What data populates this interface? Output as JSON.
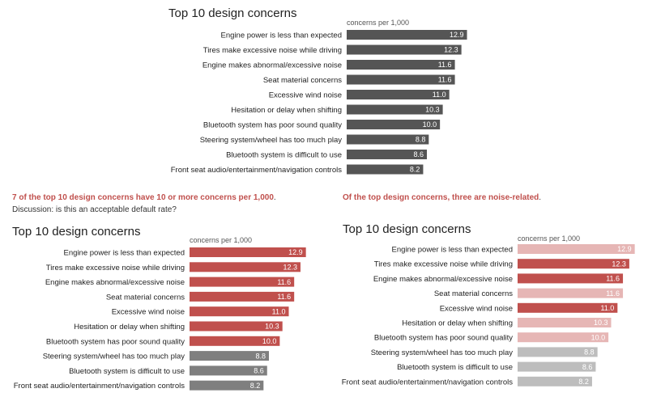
{
  "texts": {
    "takeaway_left_bold": "7 of the top 10 design concerns have 10 or more concerns per 1,000",
    "takeaway_left_end": ".",
    "takeaway_left_line2": "Discussion: is this an acceptable default rate?",
    "takeaway_right_bold": "Of the top design concerns, three are noise-related",
    "takeaway_right_end": "."
  },
  "colors": {
    "dark_gray": "#555555",
    "mid_gray": "#7f7f7f",
    "light_gray": "#bdbdbd",
    "red": "#c0504d",
    "light_red": "#e6b6b5"
  },
  "chart_data": [
    {
      "type": "bar",
      "orientation": "horizontal",
      "title": "Top 10 design concerns",
      "unit_label": "concerns per 1,000",
      "categories": [
        "Engine power is less than expected",
        "Tires make excessive noise while driving",
        "Engine makes abnormal/excessive noise",
        "Seat material concerns",
        "Excessive wind noise",
        "Hesitation or delay when shifting",
        "Bluetooth system has poor sound quality",
        "Steering system/wheel has too much play",
        "Bluetooth system is difficult to use",
        "Front seat audio/entertainment/navigation controls"
      ],
      "values": [
        12.9,
        12.3,
        11.6,
        11.6,
        11.0,
        10.3,
        10.0,
        8.8,
        8.6,
        8.2
      ],
      "labels": [
        "12.9",
        "12.3",
        "11.6",
        "11.6",
        "11.0",
        "10.3",
        "10.0",
        "8.8",
        "8.6",
        "8.2"
      ],
      "bar_colors": [
        "dark_gray",
        "dark_gray",
        "dark_gray",
        "dark_gray",
        "dark_gray",
        "dark_gray",
        "dark_gray",
        "dark_gray",
        "dark_gray",
        "dark_gray"
      ],
      "xlim": [
        0,
        13.2
      ]
    },
    {
      "type": "bar",
      "orientation": "horizontal",
      "title": "Top 10 design concerns",
      "unit_label": "concerns per 1,000",
      "categories": [
        "Engine power is less than expected",
        "Tires make excessive noise while driving",
        "Engine makes abnormal/excessive noise",
        "Seat material concerns",
        "Excessive wind noise",
        "Hesitation or delay when shifting",
        "Bluetooth system has poor sound quality",
        "Steering system/wheel has too much play",
        "Bluetooth system is difficult to use",
        "Front seat audio/entertainment/navigation controls"
      ],
      "values": [
        12.9,
        12.3,
        11.6,
        11.6,
        11.0,
        10.3,
        10.0,
        8.8,
        8.6,
        8.2
      ],
      "labels": [
        "12.9",
        "12.3",
        "11.6",
        "11.6",
        "11.0",
        "10.3",
        "10.0",
        "8.8",
        "8.6",
        "8.2"
      ],
      "bar_colors": [
        "red",
        "red",
        "red",
        "red",
        "red",
        "red",
        "red",
        "mid_gray",
        "mid_gray",
        "mid_gray"
      ],
      "xlim": [
        0,
        13.2
      ]
    },
    {
      "type": "bar",
      "orientation": "horizontal",
      "title": "Top 10 design concerns",
      "unit_label": "concerns per 1,000",
      "categories": [
        "Engine power is less than expected",
        "Tires make excessive noise while driving",
        "Engine makes abnormal/excessive noise",
        "Seat material concerns",
        "Excessive wind noise",
        "Hesitation or delay when shifting",
        "Bluetooth system has poor sound quality",
        "Steering system/wheel has too much play",
        "Bluetooth system is difficult to use",
        "Front seat audio/entertainment/navigation controls"
      ],
      "values": [
        12.9,
        12.3,
        11.6,
        11.6,
        11.0,
        10.3,
        10.0,
        8.8,
        8.6,
        8.2
      ],
      "labels": [
        "12.9",
        "12.3",
        "11.6",
        "11.6",
        "11.0",
        "10.3",
        "10.0",
        "8.8",
        "8.6",
        "8.2"
      ],
      "bar_colors": [
        "light_red",
        "red",
        "red",
        "light_red",
        "red",
        "light_red",
        "light_red",
        "light_gray",
        "light_gray",
        "light_gray"
      ],
      "xlim": [
        0,
        13.2
      ]
    }
  ]
}
